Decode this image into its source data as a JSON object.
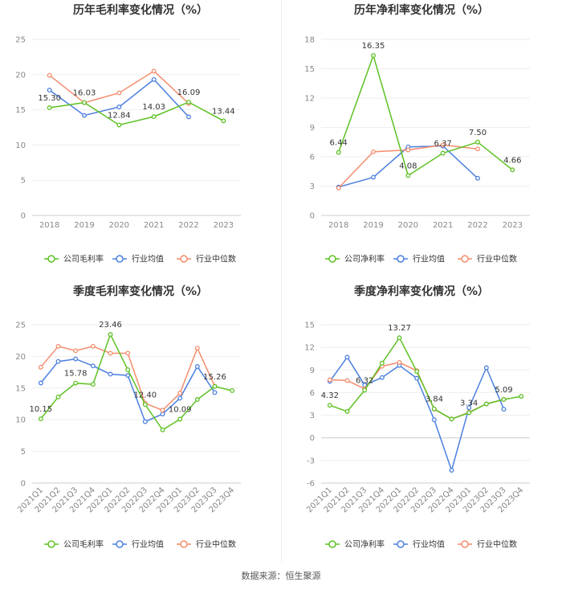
{
  "source": "数据来源：恒生聚源",
  "legend_markers": [
    "#5dc122",
    "#4b7fe0",
    "#f48c6c"
  ],
  "chart_data": [
    {
      "type": "line",
      "title": "历年毛利率变化情况（%）",
      "categories": [
        "2018",
        "2019",
        "2020",
        "2021",
        "2022",
        "2023"
      ],
      "ylim": [
        0,
        25
      ],
      "yticks": [
        0,
        5,
        10,
        15,
        20,
        25
      ],
      "series": [
        {
          "name": "公司毛利率",
          "color": "#5dc122",
          "values": [
            15.3,
            16.03,
            12.84,
            14.03,
            16.09,
            13.44
          ],
          "labels": [
            "15.30",
            "16.03",
            "12.84",
            "14.03",
            "16.09",
            "13.44"
          ]
        },
        {
          "name": "行业均值",
          "color": "#4b7fe0",
          "values": [
            17.8,
            14.2,
            15.4,
            19.3,
            14.0,
            null
          ]
        },
        {
          "name": "行业中位数",
          "color": "#f48c6c",
          "values": [
            19.9,
            16.0,
            17.4,
            20.5,
            15.9,
            null
          ]
        }
      ]
    },
    {
      "type": "line",
      "title": "历年净利率变化情况（%）",
      "categories": [
        "2018",
        "2019",
        "2020",
        "2021",
        "2022",
        "2023"
      ],
      "ylim": [
        0,
        18
      ],
      "yticks": [
        0,
        3,
        6,
        9,
        12,
        15,
        18
      ],
      "series": [
        {
          "name": "公司净利率",
          "color": "#5dc122",
          "values": [
            6.44,
            16.35,
            4.08,
            6.37,
            7.5,
            4.66
          ],
          "labels": [
            "6.44",
            "16.35",
            "4.08",
            "6.37",
            "7.50",
            "4.66"
          ]
        },
        {
          "name": "行业均值",
          "color": "#4b7fe0",
          "values": [
            2.9,
            3.9,
            7.0,
            7.1,
            3.8,
            null
          ]
        },
        {
          "name": "行业中位数",
          "color": "#f48c6c",
          "values": [
            2.8,
            6.5,
            6.7,
            7.2,
            6.8,
            null
          ]
        }
      ]
    },
    {
      "type": "line",
      "title": "季度毛利率变化情况（%）",
      "categories": [
        "2021Q1",
        "2021Q2",
        "2021Q3",
        "2021Q4",
        "2022Q1",
        "2022Q2",
        "2022Q3",
        "2022Q4",
        "2023Q1",
        "2023Q2",
        "2023Q3",
        "2023Q4"
      ],
      "ylim": [
        0,
        25
      ],
      "yticks": [
        0,
        5,
        10,
        15,
        20,
        25
      ],
      "series": [
        {
          "name": "公司毛利率",
          "color": "#5dc122",
          "values": [
            10.15,
            13.6,
            15.78,
            15.6,
            23.46,
            17.9,
            12.4,
            8.4,
            10.09,
            13.2,
            15.26,
            14.6
          ],
          "labels": [
            "10.15",
            "",
            "15.78",
            "",
            "23.46",
            "",
            "12.40",
            "",
            "10.09",
            "",
            "15.26",
            ""
          ]
        },
        {
          "name": "行业均值",
          "color": "#4b7fe0",
          "values": [
            15.8,
            19.2,
            19.6,
            18.5,
            17.2,
            17.0,
            9.7,
            10.9,
            13.4,
            18.4,
            14.3,
            null
          ]
        },
        {
          "name": "行业中位数",
          "color": "#f48c6c",
          "values": [
            18.3,
            21.6,
            20.9,
            21.6,
            20.5,
            20.5,
            12.6,
            11.5,
            14.2,
            21.3,
            15.3,
            null
          ]
        }
      ]
    },
    {
      "type": "line",
      "title": "季度净利率变化情况（%）",
      "categories": [
        "2021Q1",
        "2021Q2",
        "2021Q3",
        "2021Q4",
        "2022Q1",
        "2022Q2",
        "2022Q3",
        "2022Q4",
        "2023Q1",
        "2023Q2",
        "2023Q3",
        "2023Q4"
      ],
      "ylim": [
        -6,
        15
      ],
      "yticks": [
        -6,
        -3,
        0,
        3,
        6,
        9,
        12,
        15
      ],
      "series": [
        {
          "name": "公司净利率",
          "color": "#5dc122",
          "values": [
            4.32,
            3.5,
            6.32,
            9.9,
            13.27,
            8.8,
            3.84,
            2.5,
            3.34,
            4.5,
            5.09,
            5.5
          ],
          "labels": [
            "4.32",
            "",
            "6.32",
            "",
            "13.27",
            "",
            "3.84",
            "",
            "3.34",
            "",
            "5.09",
            ""
          ]
        },
        {
          "name": "行业均值",
          "color": "#4b7fe0",
          "values": [
            7.5,
            10.7,
            7.0,
            8.0,
            9.6,
            7.9,
            2.4,
            -4.3,
            4.0,
            9.3,
            3.8,
            null
          ]
        },
        {
          "name": "行业中位数",
          "color": "#f48c6c",
          "values": [
            7.7,
            7.6,
            6.5,
            9.5,
            10.0,
            8.9,
            3.8,
            2.5,
            3.4,
            4.5,
            5.1,
            null
          ]
        }
      ]
    }
  ]
}
